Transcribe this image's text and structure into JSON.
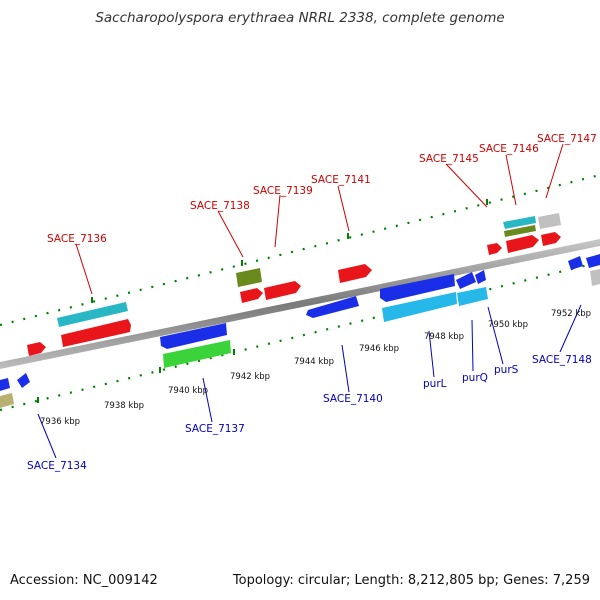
{
  "title": "Saccharopolyspora erythraea NRRL 2338, complete genome",
  "footer": {
    "accession": "Accession: NC_009142",
    "summary": "Topology: circular; Length: 8,212,805 bp; Genes: 7,259"
  },
  "colors": {
    "forward_label": "#d00000",
    "reverse_label": "#0000c0",
    "axis_ticks": "#008000",
    "backbone": "#888888"
  },
  "position_labels": [
    "7936 kbp",
    "7938 kbp",
    "7940 kbp",
    "7942 kbp",
    "7944 kbp",
    "7946 kbp",
    "7948 kbp",
    "7950 kbp",
    "7952 kbp"
  ],
  "forward_gene_labels": [
    "SACE_7136",
    "SACE_7138",
    "SACE_7139",
    "SACE_7141",
    "SACE_7145",
    "SACE_7146",
    "SACE_7147"
  ],
  "reverse_gene_labels": [
    "SACE_7134",
    "SACE_7137",
    "SACE_7140",
    "purL",
    "purQ",
    "purS",
    "SACE_7148"
  ]
}
